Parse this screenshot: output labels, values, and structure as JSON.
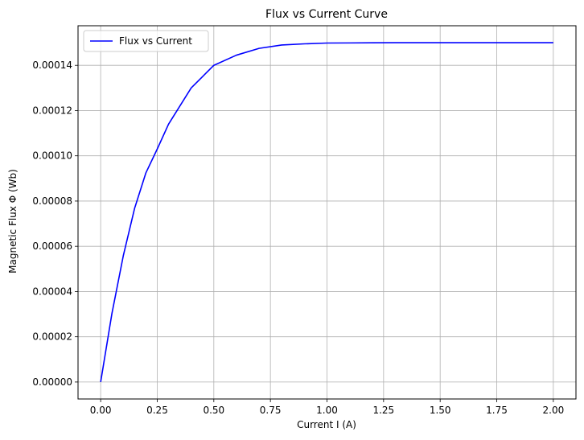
{
  "chart_data": {
    "type": "line",
    "title": "Flux vs Current Curve",
    "xlabel": "Current I (A)",
    "ylabel": "Magnetic Flux Φ (Wb)",
    "xlim": [
      -0.1,
      2.1
    ],
    "ylim": [
      -7.5e-06,
      0.0001575
    ],
    "xticks": [
      0.0,
      0.25,
      0.5,
      0.75,
      1.0,
      1.25,
      1.5,
      1.75,
      2.0
    ],
    "xtick_labels": [
      "0.00",
      "0.25",
      "0.50",
      "0.75",
      "1.00",
      "1.25",
      "1.50",
      "1.75",
      "2.00"
    ],
    "yticks": [
      0,
      2e-05,
      4e-05,
      6e-05,
      8e-05,
      0.0001,
      0.00012,
      0.00014
    ],
    "ytick_labels": [
      "0.00000",
      "0.00002",
      "0.00004",
      "0.00006",
      "0.00008",
      "0.00010",
      "0.00012",
      "0.00014"
    ],
    "grid": true,
    "legend_position": "top-left",
    "series": [
      {
        "name": "Flux vs Current",
        "color": "#0000ff",
        "x": [
          0.0,
          0.05,
          0.1,
          0.15,
          0.2,
          0.25,
          0.3,
          0.35,
          0.4,
          0.45,
          0.5,
          0.6,
          0.7,
          0.8,
          0.9,
          1.0,
          1.1,
          1.2,
          1.3,
          1.4,
          1.5,
          1.6,
          1.7,
          1.8,
          1.9,
          2.0
        ],
        "y": [
          0.0,
          3.04e-05,
          5.58e-05,
          7.68e-05,
          9.25e-05,
          0.000103,
          0.000114,
          0.000122,
          0.00013,
          0.000135,
          0.00014,
          0.0001445,
          0.0001475,
          0.000149,
          0.0001495,
          0.00014985,
          0.0001499,
          0.00014995,
          0.00015,
          0.00015,
          0.00015,
          0.00015,
          0.00015,
          0.00015,
          0.00015,
          0.00015
        ]
      }
    ]
  }
}
